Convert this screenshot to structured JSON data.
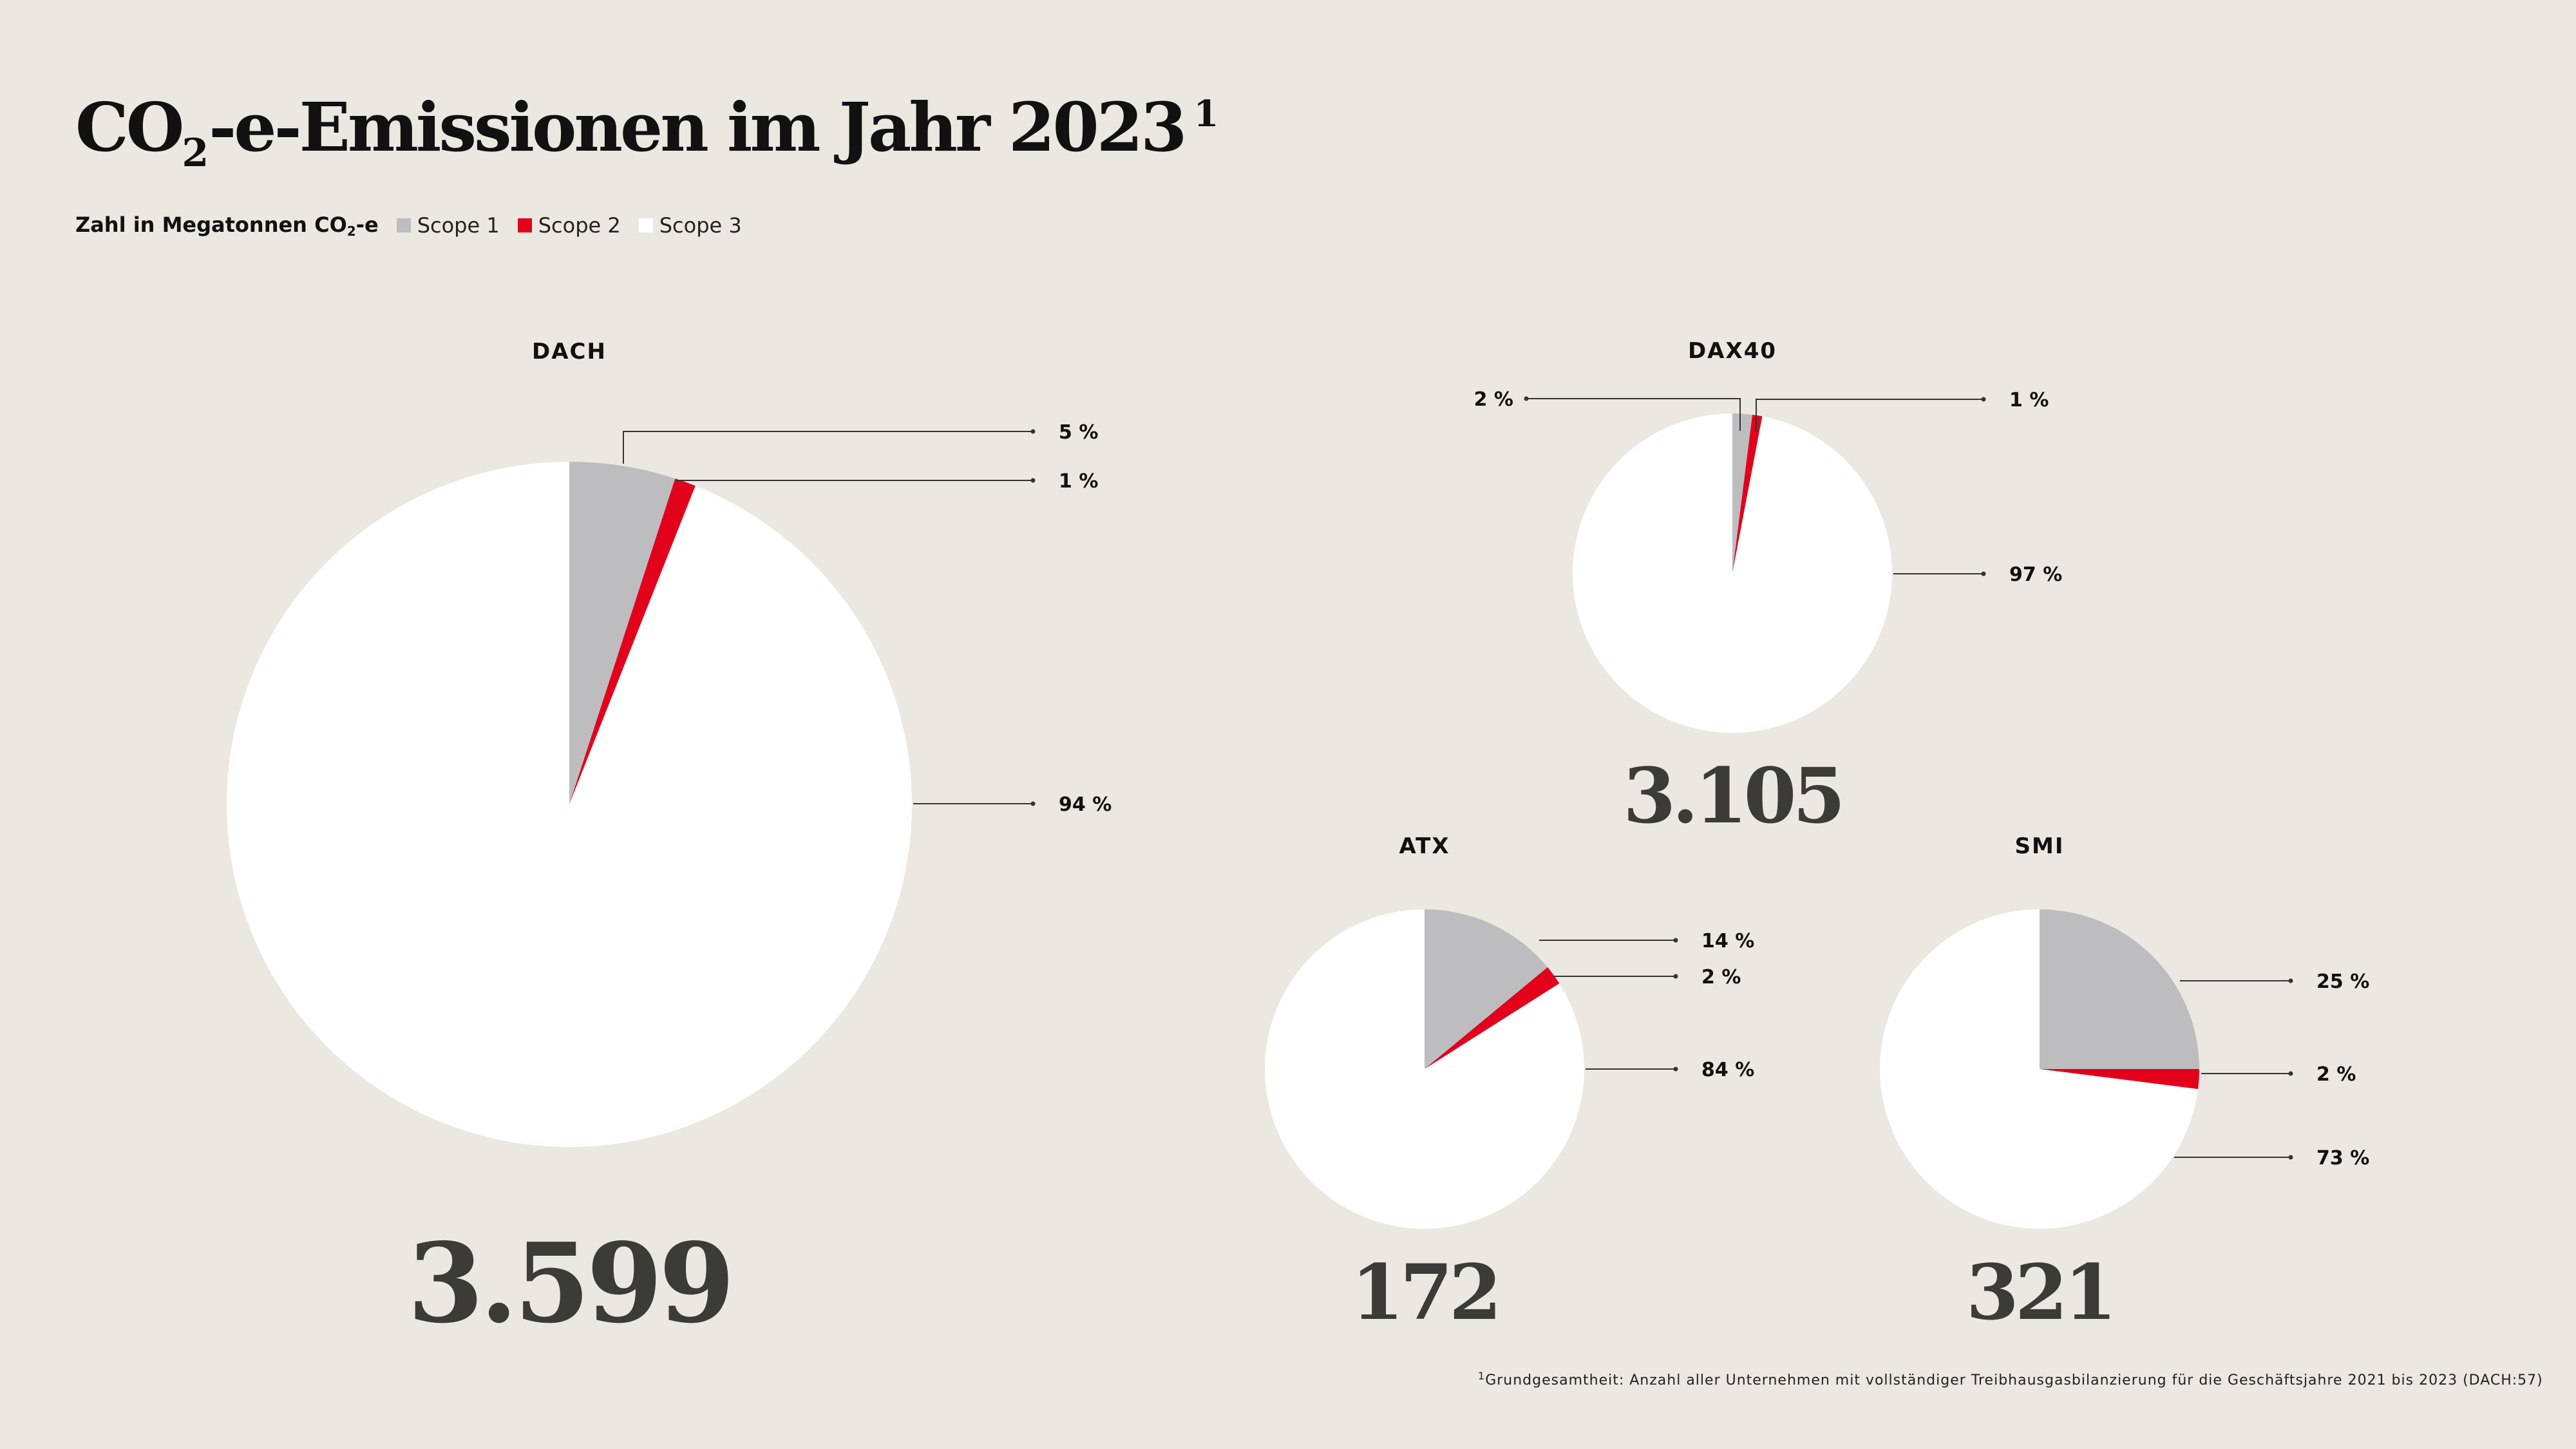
{
  "title": {
    "text": "CO",
    "sub": "2",
    "rest": "-e-Emissionen im Jahr 2023",
    "sup": "1"
  },
  "subtitle": {
    "text": "Zahl in Megatonnen CO",
    "sub": "2",
    "rest": "-e"
  },
  "legend": [
    {
      "label": "Scope 1",
      "color": "#bdbdbf"
    },
    {
      "label": "Scope 2",
      "color": "#e3001b"
    },
    {
      "label": "Scope 3",
      "color": "#ffffff"
    }
  ],
  "footnote": {
    "sup": "1",
    "text": "Grundgesamtheit: Anzahl aller Unternehmen mit vollständiger Treibhausgasbilanzierung für die Geschäftsjahre 2021 bis 2023 (DACH:57)"
  },
  "chart_data": [
    {
      "type": "pie",
      "title": "DACH",
      "total": "3.599",
      "categories": [
        "Scope 1",
        "Scope 2",
        "Scope 3"
      ],
      "values": [
        5,
        1,
        94
      ],
      "labels": [
        "5 %",
        "1 %",
        "94 %"
      ]
    },
    {
      "type": "pie",
      "title": "DAX40",
      "total": "3.105",
      "categories": [
        "Scope 1",
        "Scope 2",
        "Scope 3"
      ],
      "values": [
        2,
        1,
        97
      ],
      "labels": [
        "2 %",
        "1 %",
        "97 %"
      ]
    },
    {
      "type": "pie",
      "title": "ATX",
      "total": "172",
      "categories": [
        "Scope 1",
        "Scope 2",
        "Scope 3"
      ],
      "values": [
        14,
        2,
        84
      ],
      "labels": [
        "14 %",
        "2 %",
        "84 %"
      ]
    },
    {
      "type": "pie",
      "title": "SMI",
      "total": "321",
      "categories": [
        "Scope 1",
        "Scope 2",
        "Scope 3"
      ],
      "values": [
        25,
        2,
        73
      ],
      "labels": [
        "25 %",
        "2 %",
        "73 %"
      ]
    }
  ]
}
